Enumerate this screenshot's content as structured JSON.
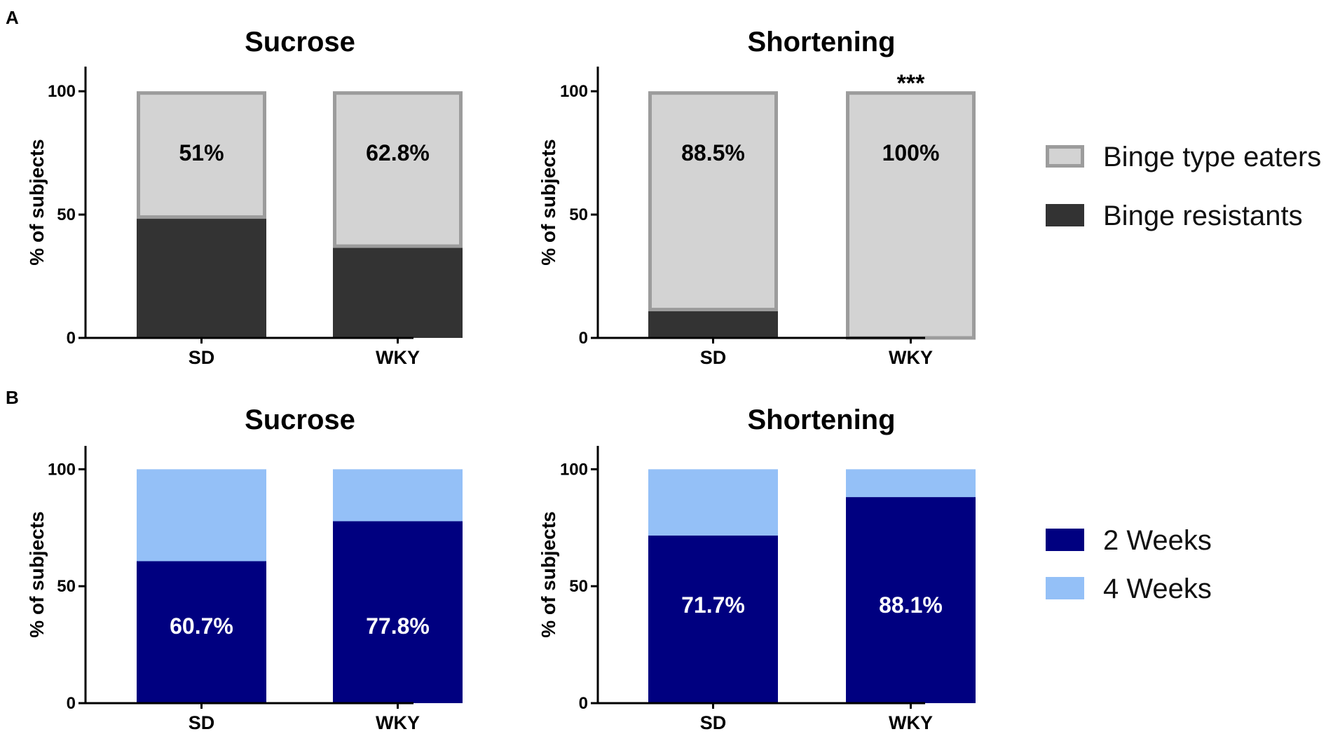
{
  "panels": [
    {
      "letter": "A"
    },
    {
      "letter": "B"
    }
  ],
  "legends": [
    {
      "panel": "A",
      "entries": [
        {
          "label": "Binge type eaters",
          "fill": "#d3d3d3",
          "stroke": "#9c9c9c"
        },
        {
          "label": "Binge resistants",
          "fill": "#333333",
          "stroke": "#333333"
        }
      ]
    },
    {
      "panel": "B",
      "entries": [
        {
          "label": "2 Weeks",
          "fill": "#000080",
          "stroke": "#000080"
        },
        {
          "label": "4 Weeks",
          "fill": "#94c0f7",
          "stroke": "#94c0f7"
        }
      ]
    }
  ],
  "chart_data": [
    {
      "type": "bar",
      "stacked": true,
      "panel": "A",
      "title": "Sucrose",
      "xlabel": "",
      "ylabel": "% of subjects",
      "ylim": [
        0,
        110
      ],
      "yticks": [
        0,
        50,
        100
      ],
      "categories": [
        "SD",
        "WKY"
      ],
      "series": [
        {
          "name": "Binge resistants",
          "values": [
            49,
            37.2
          ],
          "fill": "#333333",
          "stroke": "#333333"
        },
        {
          "name": "Binge type eaters",
          "values": [
            51,
            62.8
          ],
          "fill": "#d3d3d3",
          "stroke": "#9c9c9c",
          "outlined": true
        }
      ],
      "labels": [
        {
          "category": "SD",
          "text": "51%",
          "at": 75,
          "color": "#000000"
        },
        {
          "category": "WKY",
          "text": "62.8%",
          "at": 75,
          "color": "#000000"
        }
      ],
      "annotations": []
    },
    {
      "type": "bar",
      "stacked": true,
      "panel": "A",
      "title": "Shortening",
      "xlabel": "",
      "ylabel": "% of subjects",
      "ylim": [
        0,
        110
      ],
      "yticks": [
        0,
        50,
        100
      ],
      "categories": [
        "SD",
        "WKY"
      ],
      "series": [
        {
          "name": "Binge resistants",
          "values": [
            11.5,
            0
          ],
          "fill": "#333333",
          "stroke": "#333333"
        },
        {
          "name": "Binge type eaters",
          "values": [
            88.5,
            100
          ],
          "fill": "#d3d3d3",
          "stroke": "#9c9c9c",
          "outlined": true
        }
      ],
      "labels": [
        {
          "category": "SD",
          "text": "88.5%",
          "at": 75,
          "color": "#000000"
        },
        {
          "category": "WKY",
          "text": "100%",
          "at": 75,
          "color": "#000000"
        }
      ],
      "annotations": [
        {
          "category": "WKY",
          "text": "***",
          "at": 104
        }
      ]
    },
    {
      "type": "bar",
      "stacked": true,
      "panel": "B",
      "title": "Sucrose",
      "xlabel": "",
      "ylabel": "% of subjects",
      "ylim": [
        0,
        110
      ],
      "yticks": [
        0,
        50,
        100
      ],
      "categories": [
        "SD",
        "WKY"
      ],
      "series": [
        {
          "name": "2 Weeks",
          "values": [
            60.7,
            77.8
          ],
          "fill": "#000080",
          "stroke": "#000080"
        },
        {
          "name": "4 Weeks",
          "values": [
            39.3,
            22.2
          ],
          "fill": "#94c0f7",
          "stroke": "#94c0f7"
        }
      ],
      "labels": [
        {
          "category": "SD",
          "text": "60.7%",
          "at": 33,
          "color": "#ffffff"
        },
        {
          "category": "WKY",
          "text": "77.8%",
          "at": 33,
          "color": "#ffffff"
        }
      ],
      "annotations": []
    },
    {
      "type": "bar",
      "stacked": true,
      "panel": "B",
      "title": "Shortening",
      "xlabel": "",
      "ylabel": "% of subjects",
      "ylim": [
        0,
        110
      ],
      "yticks": [
        0,
        50,
        100
      ],
      "categories": [
        "SD",
        "WKY"
      ],
      "series": [
        {
          "name": "2 Weeks",
          "values": [
            71.7,
            88.1
          ],
          "fill": "#000080",
          "stroke": "#000080"
        },
        {
          "name": "4 Weeks",
          "values": [
            28.3,
            11.9
          ],
          "fill": "#94c0f7",
          "stroke": "#94c0f7"
        }
      ],
      "labels": [
        {
          "category": "SD",
          "text": "71.7%",
          "at": 42,
          "color": "#ffffff"
        },
        {
          "category": "WKY",
          "text": "88.1%",
          "at": 42,
          "color": "#ffffff"
        }
      ],
      "annotations": []
    }
  ]
}
